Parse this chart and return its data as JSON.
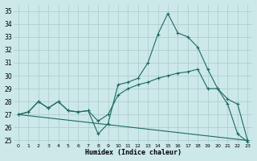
{
  "xlabel": "Humidex (Indice chaleur)",
  "bg_color": "#cce8e8",
  "line_color": "#1a6b5e",
  "grid_color": "#b0d0d0",
  "xlim": [
    -0.5,
    23.5
  ],
  "ylim": [
    24.8,
    35.5
  ],
  "xticks": [
    0,
    1,
    2,
    3,
    4,
    5,
    6,
    7,
    8,
    9,
    10,
    11,
    12,
    13,
    14,
    15,
    16,
    17,
    18,
    19,
    20,
    21,
    22,
    23
  ],
  "yticks": [
    25,
    26,
    27,
    28,
    29,
    30,
    31,
    32,
    33,
    34,
    35
  ],
  "line1_x": [
    0,
    1,
    2,
    3,
    4,
    5,
    6,
    7,
    8,
    9,
    10,
    11,
    12,
    13,
    14,
    15,
    16,
    17,
    18,
    19,
    20,
    21,
    22,
    23
  ],
  "line1_y": [
    27.0,
    27.2,
    28.0,
    27.5,
    28.0,
    27.3,
    27.2,
    27.3,
    25.5,
    26.3,
    29.3,
    29.5,
    29.8,
    31.0,
    33.2,
    34.8,
    33.3,
    33.0,
    32.2,
    30.5,
    29.0,
    27.8,
    25.5,
    24.9
  ],
  "line2_x": [
    0,
    1,
    2,
    3,
    4,
    5,
    6,
    7,
    8,
    9,
    10,
    11,
    12,
    13,
    14,
    15,
    16,
    17,
    18,
    19,
    20,
    21,
    22,
    23
  ],
  "line2_y": [
    27.0,
    27.2,
    28.0,
    27.5,
    28.0,
    27.3,
    27.2,
    27.3,
    26.5,
    27.0,
    28.5,
    29.0,
    29.3,
    29.5,
    29.8,
    30.0,
    30.2,
    30.3,
    30.5,
    29.0,
    29.0,
    28.2,
    27.8,
    25.0
  ],
  "line3_x": [
    0,
    23
  ],
  "line3_y": [
    27.0,
    25.0
  ]
}
